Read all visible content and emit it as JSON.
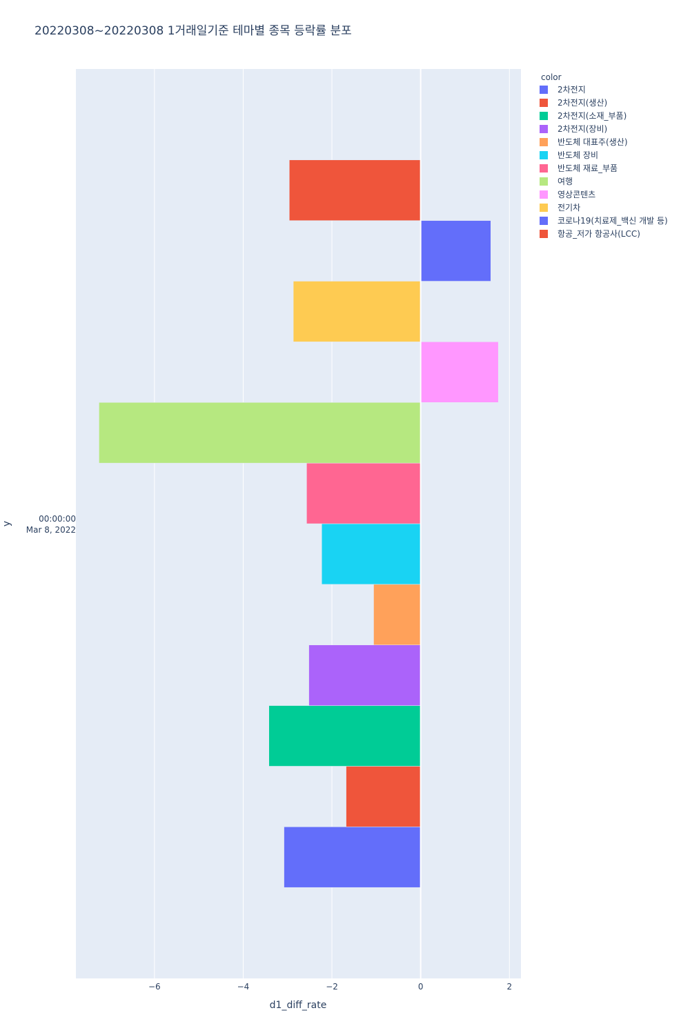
{
  "chart_data": {
    "type": "bar",
    "orientation": "horizontal",
    "barmode": "group",
    "title": "20220308~20220308 1거래일기준 테마별 종목 등락률 분포",
    "xlabel": "d1_diff_rate",
    "ylabel": "y",
    "xlim": [
      -7.77,
      2.26
    ],
    "xticks": [
      -6,
      -4,
      -2,
      0,
      2
    ],
    "xtick_labels": [
      "−6",
      "−4",
      "−2",
      "0",
      "2"
    ],
    "y_category_lines": [
      "00:00:00",
      "Mar 8, 2022"
    ],
    "grid": true,
    "legend": {
      "title": "color",
      "placement": "top-right"
    },
    "series": [
      {
        "name": "2차전지",
        "value": -3.08,
        "color": "#636efa"
      },
      {
        "name": "2차전지(생산)",
        "value": -1.68,
        "color": "#EF553B"
      },
      {
        "name": "2차전지(소재_부품)",
        "value": -3.42,
        "color": "#00cc96"
      },
      {
        "name": "2차전지(장비)",
        "value": -2.52,
        "color": "#ab63fa"
      },
      {
        "name": "반도체 대표주(생산)",
        "value": -1.06,
        "color": "#FFA15A"
      },
      {
        "name": "반도체 장비",
        "value": -2.23,
        "color": "#19d3f3"
      },
      {
        "name": "반도체 재료_부품",
        "value": -2.57,
        "color": "#FF6692"
      },
      {
        "name": "여행",
        "value": -7.25,
        "color": "#B6E880"
      },
      {
        "name": "영상콘텐츠",
        "value": 1.75,
        "color": "#FF97FF"
      },
      {
        "name": "전기차",
        "value": -2.87,
        "color": "#FECB52"
      },
      {
        "name": "코로나19(치료제_백신 개발 등)",
        "value": 1.58,
        "color": "#636efa"
      },
      {
        "name": "항공_저가 항공사(LCC)",
        "value": -2.96,
        "color": "#EF553B"
      }
    ]
  }
}
